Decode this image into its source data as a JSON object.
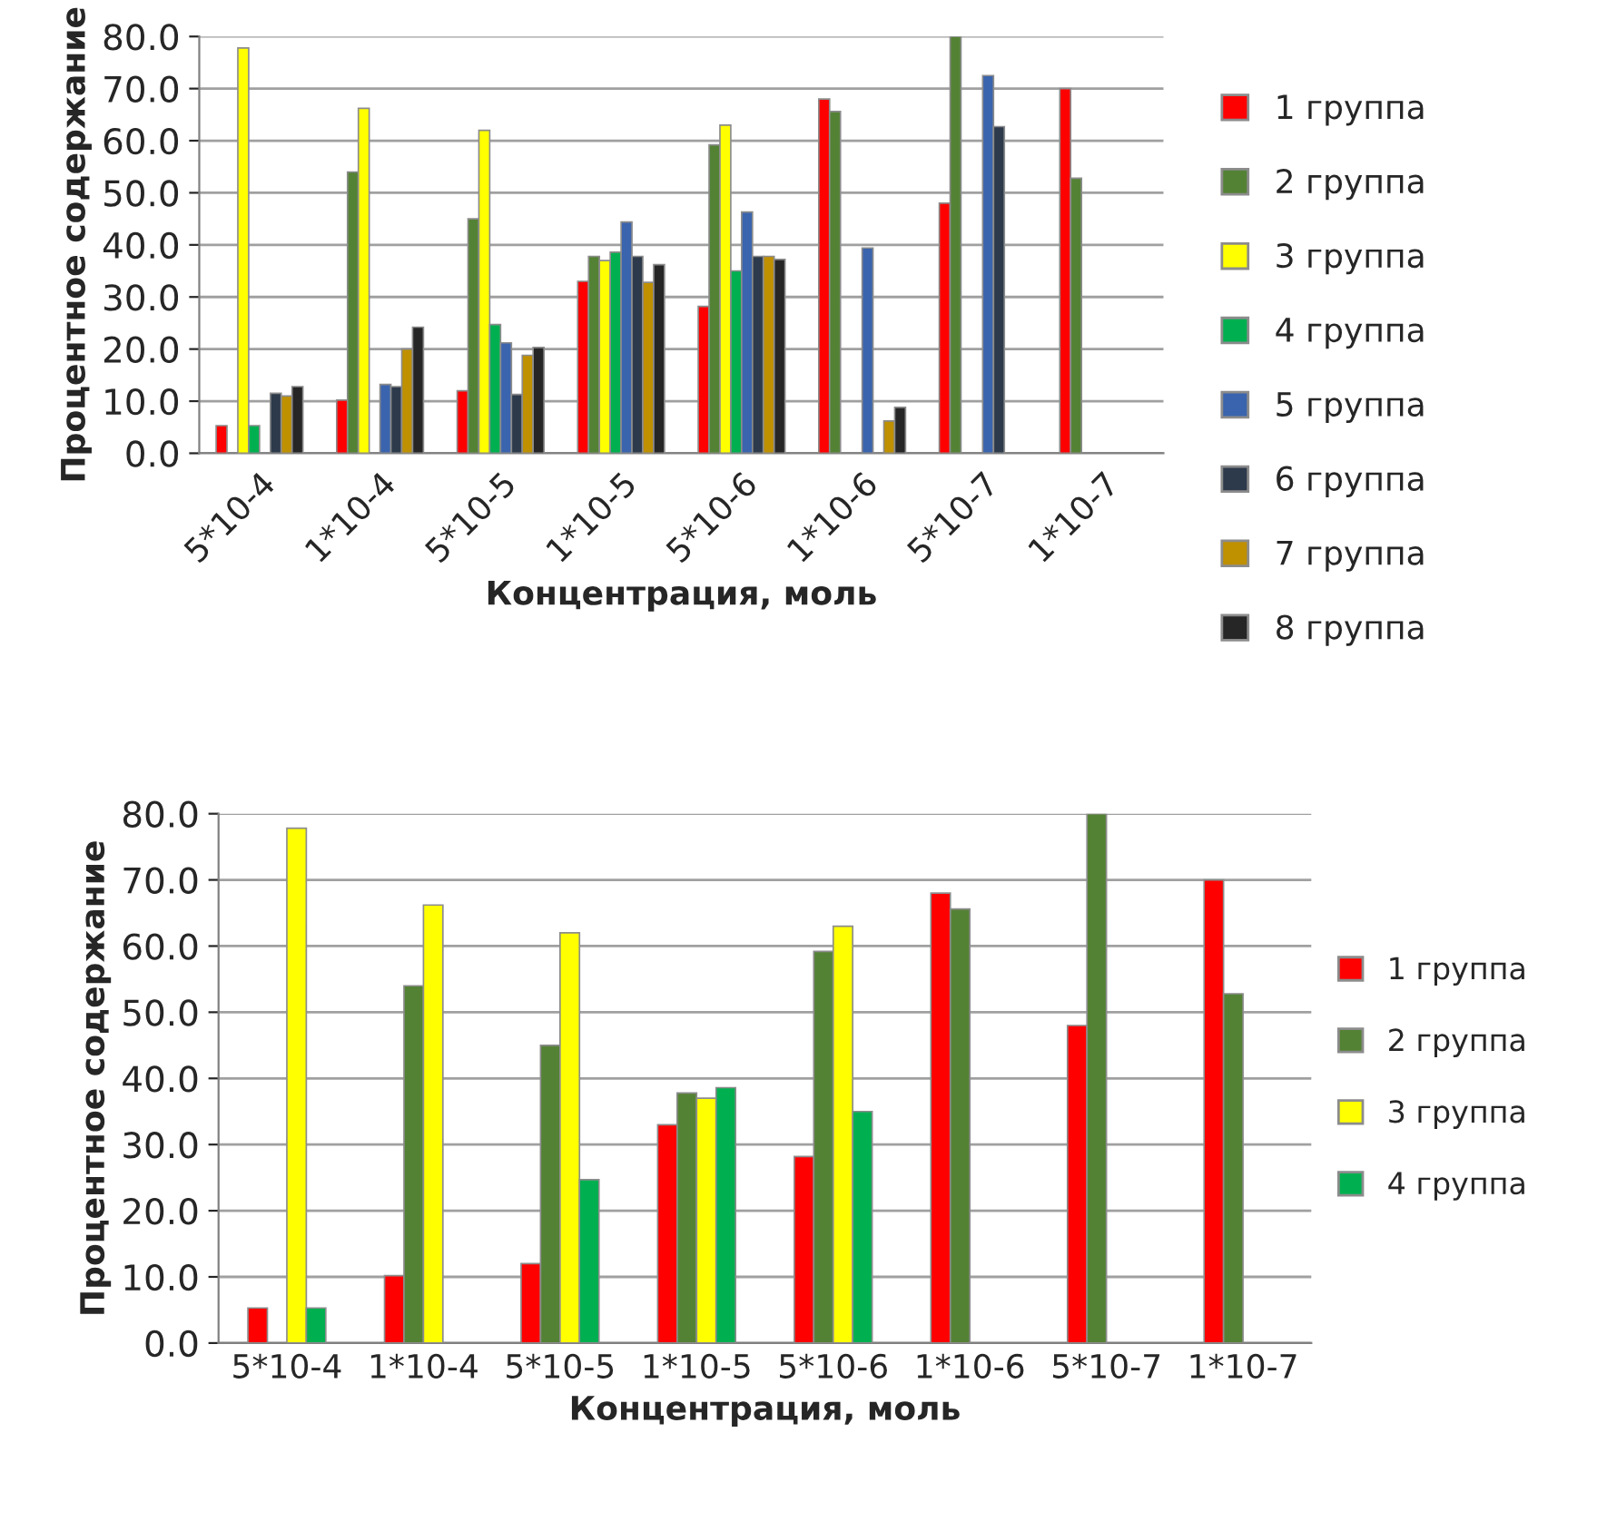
{
  "chart_data": [
    {
      "type": "bar",
      "xlabel": "Концентрация, моль",
      "ylabel": "Процентное содержание",
      "categories": [
        "5*10-4",
        "1*10-4",
        "5*10-5",
        "1*10-5",
        "5*10-6",
        "1*10-6",
        "5*10-7",
        "1*10-7"
      ],
      "ylim": [
        0,
        80
      ],
      "yticks": [
        {
          "value": 0,
          "label": "0.0"
        },
        {
          "value": 10,
          "label": "10.0"
        },
        {
          "value": 20,
          "label": "20.0"
        },
        {
          "value": 30,
          "label": "30.0"
        },
        {
          "value": 40,
          "label": "40.0"
        },
        {
          "value": 50,
          "label": "50.0"
        },
        {
          "value": 60,
          "label": "60.0"
        },
        {
          "value": 70,
          "label": "70.0"
        },
        {
          "value": 80,
          "label": "80.0"
        }
      ],
      "grid": "y",
      "legend": "right",
      "series": [
        {
          "name": "1 группа",
          "color": "#ff0000",
          "values": [
            5.3,
            10.2,
            12,
            33,
            28.2,
            68,
            48,
            70
          ]
        },
        {
          "name": "2 группа",
          "color": "#548235",
          "values": [
            null,
            54,
            45,
            37.8,
            59.2,
            65.6,
            80,
            52.8
          ]
        },
        {
          "name": "3 группа",
          "color": "#ffff00",
          "values": [
            77.8,
            66.2,
            62,
            37,
            63,
            null,
            null,
            null
          ]
        },
        {
          "name": "4 группа",
          "color": "#00b050",
          "values": [
            5.3,
            null,
            24.7,
            38.6,
            35,
            null,
            null,
            null
          ]
        },
        {
          "name": "5 группа",
          "color": "#3a64ad",
          "values": [
            null,
            13.2,
            21.2,
            44.4,
            46.3,
            39.4,
            72.5,
            null
          ]
        },
        {
          "name": "6 группа",
          "color": "#2d3a4b",
          "values": [
            11.5,
            12.8,
            11.3,
            37.8,
            37.8,
            null,
            62.7,
            null
          ]
        },
        {
          "name": "7 группа",
          "color": "#bf9000",
          "values": [
            11,
            20,
            18.8,
            32.8,
            37.8,
            6.2,
            null,
            null
          ]
        },
        {
          "name": "8 группа",
          "color": "#262626",
          "values": [
            12.8,
            24.2,
            20.3,
            36.2,
            37.2,
            8.8,
            null,
            null
          ]
        }
      ]
    },
    {
      "type": "bar",
      "xlabel": "Концентрация, моль",
      "ylabel": "Процентное содержание",
      "categories": [
        "5*10-4",
        "1*10-4",
        "5*10-5",
        "1*10-5",
        "5*10-6",
        "1*10-6",
        "5*10-7",
        "1*10-7"
      ],
      "ylim": [
        0,
        80
      ],
      "yticks": [
        {
          "value": 0,
          "label": "0.0"
        },
        {
          "value": 10,
          "label": "10.0"
        },
        {
          "value": 20,
          "label": "20.0"
        },
        {
          "value": 30,
          "label": "30.0"
        },
        {
          "value": 40,
          "label": "40.0"
        },
        {
          "value": 50,
          "label": "50.0"
        },
        {
          "value": 60,
          "label": "60.0"
        },
        {
          "value": 70,
          "label": "70.0"
        },
        {
          "value": 80,
          "label": "80.0"
        }
      ],
      "grid": "y",
      "legend": "right",
      "series": [
        {
          "name": "1 группа",
          "color": "#ff0000",
          "values": [
            5.3,
            10.2,
            12,
            33,
            28.2,
            68,
            48,
            70
          ]
        },
        {
          "name": "2 группа",
          "color": "#548235",
          "values": [
            null,
            54,
            45,
            37.8,
            59.2,
            65.6,
            80,
            52.8
          ]
        },
        {
          "name": "3 группа",
          "color": "#ffff00",
          "values": [
            77.8,
            66.2,
            62,
            37,
            63,
            null,
            null,
            null
          ]
        },
        {
          "name": "4 группа",
          "color": "#00b050",
          "values": [
            5.3,
            null,
            24.7,
            38.6,
            35,
            null,
            null,
            null
          ]
        }
      ]
    }
  ]
}
